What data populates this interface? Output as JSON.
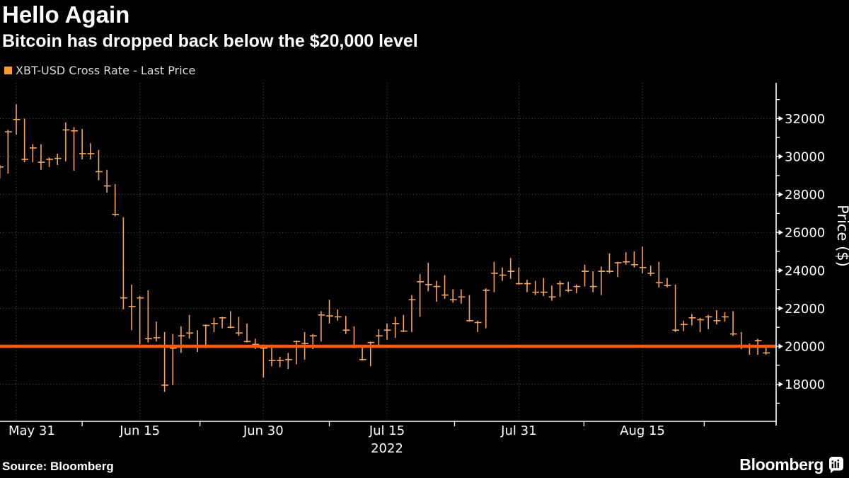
{
  "header": {
    "title": "Hello Again",
    "subtitle": "Bitcoin has dropped back below the $20,000 level"
  },
  "legend": {
    "label": "XBT-USD Cross Rate - Last Price",
    "swatch_color": "#f79b37"
  },
  "footer": {
    "source": "Source: Bloomberg",
    "brand": "Bloomberg"
  },
  "chart_data": {
    "type": "bar",
    "subtype": "hlc-ohlc-bars",
    "title": "Hello Again",
    "subtitle": "Bitcoin has dropped back below the $20,000 level",
    "series_name": "XBT-USD Cross Rate - Last Price",
    "xlabel": "",
    "ylabel": "Price ($)",
    "ylim": [
      16050,
      33900
    ],
    "grid": true,
    "legend_position": "top-left",
    "bar_color": "#f4a566",
    "reference_line": {
      "value": 20000,
      "color": "#fd5a08"
    },
    "y_axis": {
      "major_ticks": [
        18000,
        20000,
        22000,
        24000,
        26000,
        28000,
        30000,
        32000
      ],
      "minor_ticks": [
        17000,
        19000,
        21000,
        23000,
        25000,
        27000,
        29000,
        31000,
        33000
      ]
    },
    "x_axis": {
      "ticks": [
        {
          "label": "May 31",
          "i": 2
        },
        {
          "label": "Jun 15",
          "i": 17
        },
        {
          "label": "Jun 30",
          "i": 32
        },
        {
          "label": "Jul 15",
          "i": 47
        },
        {
          "label": "Jul 31",
          "i": 63
        },
        {
          "label": "Aug 15",
          "i": 78
        }
      ],
      "minor_tick_indices": [
        10,
        24.3,
        40,
        55.2,
        70.9,
        85.5
      ],
      "year_label": "2022",
      "year_under_index": 47
    },
    "columns": [
      "date",
      "high",
      "low",
      "close"
    ],
    "rows": [
      [
        "May 29",
        29550,
        28850,
        29450
      ],
      [
        "May 30",
        31400,
        29100,
        31300
      ],
      [
        "May 31",
        32750,
        31150,
        31950
      ],
      [
        "Jun 1",
        32000,
        29700,
        29850
      ],
      [
        "Jun 2",
        30650,
        29700,
        30450
      ],
      [
        "Jun 3",
        30650,
        29300,
        29700
      ],
      [
        "Jun 4",
        29950,
        29450,
        29850
      ],
      [
        "Jun 5",
        30150,
        29550,
        29900
      ],
      [
        "Jun 6",
        31800,
        29750,
        31400
      ],
      [
        "Jun 7",
        31550,
        29250,
        31350
      ],
      [
        "Jun 8",
        31450,
        29850,
        30150
      ],
      [
        "Jun 9",
        30700,
        29850,
        30150
      ],
      [
        "Jun 10",
        30350,
        28750,
        29200
      ],
      [
        "Jun 11",
        29300,
        28100,
        28450
      ],
      [
        "Jun 12",
        28550,
        26850,
        26950
      ],
      [
        "Jun 13",
        26800,
        21950,
        22550
      ],
      [
        "Jun 14",
        23250,
        20850,
        22100
      ],
      [
        "Jun 15",
        22650,
        20100,
        22550
      ],
      [
        "Jun 16",
        22950,
        20200,
        20400
      ],
      [
        "Jun 17",
        21300,
        20250,
        20450
      ],
      [
        "Jun 18",
        20750,
        17600,
        17950
      ],
      [
        "Jun 19",
        20650,
        17950,
        19900
      ],
      [
        "Jun 20",
        21050,
        19650,
        20550
      ],
      [
        "Jun 21",
        21650,
        20400,
        20700
      ],
      [
        "Jun 22",
        20850,
        19700,
        19950
      ],
      [
        "Jun 23",
        21150,
        19900,
        21100
      ],
      [
        "Jun 24",
        21500,
        20750,
        21200
      ],
      [
        "Jun 25",
        21550,
        20950,
        21500
      ],
      [
        "Jun 26",
        21850,
        20950,
        21000
      ],
      [
        "Jun 27",
        21550,
        20550,
        20700
      ],
      [
        "Jun 28",
        21200,
        20200,
        20250
      ],
      [
        "Jun 29",
        20400,
        19850,
        20100
      ],
      [
        "Jun 30",
        20100,
        18350,
        19900
      ],
      [
        "Jul 1",
        20100,
        18950,
        19250
      ],
      [
        "Jul 2",
        19450,
        18900,
        19250
      ],
      [
        "Jul 3",
        19650,
        18800,
        19300
      ],
      [
        "Jul 4",
        20300,
        19050,
        20250
      ],
      [
        "Jul 5",
        20750,
        19300,
        20150
      ],
      [
        "Jul 6",
        20650,
        19850,
        20550
      ],
      [
        "Jul 7",
        21850,
        20250,
        21650
      ],
      [
        "Jul 8",
        22450,
        21200,
        21600
      ],
      [
        "Jul 9",
        21950,
        21350,
        21550
      ],
      [
        "Jul 10",
        21600,
        20650,
        20850
      ],
      [
        "Jul 11",
        21050,
        19900,
        19950
      ],
      [
        "Jul 12",
        20050,
        19250,
        19300
      ],
      [
        "Jul 13",
        20250,
        18950,
        20200
      ],
      [
        "Jul 14",
        20900,
        19950,
        20550
      ],
      [
        "Jul 15",
        21200,
        20350,
        20850
      ],
      [
        "Jul 16",
        21550,
        20450,
        21200
      ],
      [
        "Jul 17",
        21650,
        20750,
        20800
      ],
      [
        "Jul 18",
        22700,
        20750,
        22450
      ],
      [
        "Jul 19",
        23800,
        21550,
        23400
      ],
      [
        "Jul 20",
        24400,
        22900,
        23250
      ],
      [
        "Jul 21",
        23450,
        22350,
        23150
      ],
      [
        "Jul 22",
        23750,
        22500,
        22700
      ],
      [
        "Jul 23",
        23000,
        22300,
        22450
      ],
      [
        "Jul 24",
        23000,
        22250,
        22600
      ],
      [
        "Jul 25",
        22700,
        21300,
        21350
      ],
      [
        "Jul 26",
        21350,
        20750,
        21250
      ],
      [
        "Jul 27",
        23050,
        20950,
        22950
      ],
      [
        "Jul 28",
        24450,
        22850,
        23850
      ],
      [
        "Jul 29",
        24150,
        23450,
        23750
      ],
      [
        "Jul 30",
        24650,
        23550,
        23950
      ],
      [
        "Jul 31",
        24150,
        23250,
        23300
      ],
      [
        "Aug 1",
        23500,
        22850,
        23300
      ],
      [
        "Aug 2",
        23450,
        22700,
        22850
      ],
      [
        "Aug 3",
        23600,
        22650,
        22850
      ],
      [
        "Aug 4",
        23200,
        22400,
        22600
      ],
      [
        "Aug 5",
        23450,
        22600,
        23300
      ],
      [
        "Aug 6",
        23400,
        22850,
        22950
      ],
      [
        "Aug 7",
        23250,
        22800,
        23150
      ],
      [
        "Aug 8",
        24300,
        23150,
        23950
      ],
      [
        "Aug 9",
        23950,
        22850,
        23150
      ],
      [
        "Aug 10",
        24200,
        22700,
        23950
      ],
      [
        "Aug 11",
        24900,
        23850,
        23950
      ],
      [
        "Aug 12",
        24450,
        23650,
        24400
      ],
      [
        "Aug 13",
        24950,
        24300,
        24450
      ],
      [
        "Aug 14",
        25000,
        24150,
        24300
      ],
      [
        "Aug 15",
        25250,
        23850,
        24150
      ],
      [
        "Aug 16",
        24250,
        23700,
        23850
      ],
      [
        "Aug 17",
        24450,
        23100,
        23350
      ],
      [
        "Aug 18",
        23600,
        23100,
        23200
      ],
      [
        "Aug 19",
        23250,
        20750,
        20850
      ],
      [
        "Aug 20",
        21350,
        20800,
        21150
      ],
      [
        "Aug 21",
        21700,
        21100,
        21500
      ],
      [
        "Aug 22",
        21500,
        20750,
        21400
      ],
      [
        "Aug 23",
        21650,
        20900,
        21550
      ],
      [
        "Aug 24",
        21900,
        21150,
        21350
      ],
      [
        "Aug 25",
        21800,
        21300,
        21550
      ],
      [
        "Aug 26",
        21850,
        20550,
        20650
      ],
      [
        "Aug 27",
        20750,
        19850,
        20050
      ],
      [
        "Aug 28",
        20150,
        19550,
        19950
      ],
      [
        "Aug 29",
        20400,
        19550,
        20300
      ],
      [
        "Aug 30",
        20050,
        19550,
        19650
      ]
    ]
  }
}
